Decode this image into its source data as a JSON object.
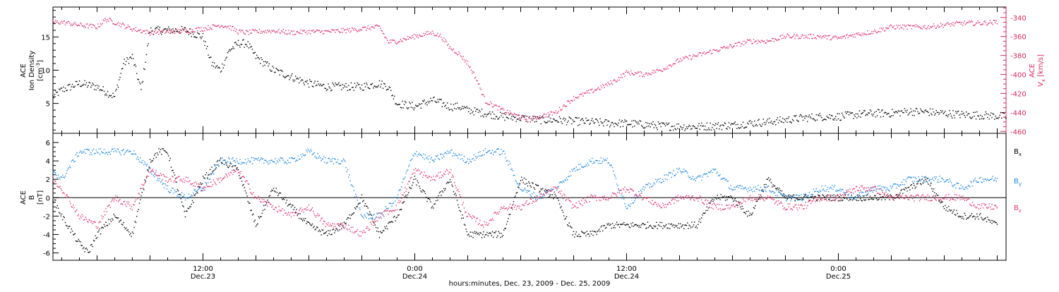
{
  "x_axis": {
    "title": "hours:minutes, Dec. 23, 2009 - Dec. 25, 2009",
    "ticks": [
      {
        "hour": 12,
        "time": "12:00",
        "date": "Dec.23"
      },
      {
        "hour": 24,
        "time": "0:00",
        "date": "Dec.24"
      },
      {
        "hour": 36,
        "time": "12:00",
        "date": "Dec.24"
      },
      {
        "hour": 48,
        "time": "0:00",
        "date": "Dec.25"
      }
    ],
    "range_hours": [
      3.5,
      57.5
    ]
  },
  "colors": {
    "black": "#000000",
    "red": "#e0336a",
    "blue": "#1e88e0",
    "red_axis": "#d6275b"
  },
  "chart_data": [
    {
      "type": "scatter",
      "ylabel_line1": "ACE",
      "ylabel_line2": "Ion Density",
      "ylabel_unit": "[cm",
      "ylabel_unit_exp": "-3",
      "ylabel_unit_end": "]",
      "ylim": [
        0.5,
        19.5
      ],
      "yticks": [
        5,
        10,
        15
      ],
      "ytick_labels": [
        "5",
        "10",
        "15"
      ],
      "y2label_line1": "ACE",
      "y2label_line2_base": "V",
      "y2label_line2_sub": "x",
      "y2label_unit": "[km/s]",
      "y2lim": [
        -462,
        -329
      ],
      "y2ticks": [
        -340,
        -360,
        -380,
        -400,
        -420,
        -440,
        -460
      ],
      "y2tick_labels": [
        "-340",
        "-360",
        "-380",
        "-400",
        "-420",
        "-440",
        "-460"
      ],
      "series": [
        {
          "axis": "left",
          "color": "black",
          "x": [
            3.5,
            4,
            5,
            6,
            7,
            7.5,
            8,
            8.5,
            9,
            9.5,
            10,
            11,
            12,
            12.5,
            13,
            13.5,
            14,
            14.5,
            15,
            15.5,
            16,
            17,
            18,
            19,
            20,
            21,
            22,
            22.5,
            23,
            24,
            25,
            25.5,
            26,
            26.5,
            27,
            28,
            29,
            30,
            31,
            32,
            33,
            34,
            35,
            36,
            37,
            38,
            39,
            40,
            41,
            42,
            43,
            44,
            45,
            46,
            47,
            48,
            49,
            50,
            51,
            52,
            53,
            54,
            55,
            56,
            57,
            57.5
          ],
          "y": [
            6,
            7,
            8,
            7.5,
            6,
            11,
            12,
            7,
            16,
            16,
            16,
            16,
            15,
            11,
            10,
            13,
            14,
            14,
            12,
            11,
            10,
            9,
            8,
            7.5,
            7.5,
            7.5,
            8,
            7.5,
            5,
            4.5,
            5.5,
            5,
            4.5,
            4.5,
            4,
            3.5,
            3,
            2.8,
            2.5,
            2.5,
            2.3,
            2.2,
            2,
            2,
            1.8,
            1.6,
            1.5,
            1.5,
            1.6,
            1.7,
            2,
            2.2,
            2.5,
            2.8,
            3,
            3,
            3.3,
            3.5,
            3.5,
            3.8,
            3.7,
            3.5,
            3.3,
            3.2,
            3.1,
            3
          ]
        },
        {
          "axis": "right",
          "color": "red",
          "x": [
            3.5,
            4,
            5,
            6,
            6.5,
            7,
            8,
            9,
            10,
            11,
            12,
            13,
            13.5,
            14,
            14.5,
            15,
            16,
            17,
            18,
            19,
            20,
            21,
            22,
            22.5,
            23,
            24,
            24.5,
            25,
            25.5,
            26,
            26.5,
            27,
            27.5,
            28,
            29,
            30,
            30.5,
            31,
            32,
            33,
            34,
            35,
            35.5,
            36,
            37,
            38,
            39,
            40,
            41,
            42,
            43,
            44,
            45,
            46,
            47,
            48,
            49,
            50,
            51,
            52,
            53,
            54,
            55,
            56,
            57
          ],
          "y": [
            -345,
            -345,
            -348,
            -350,
            -342,
            -345,
            -352,
            -356,
            -355,
            -354,
            -352,
            -348,
            -350,
            -355,
            -356,
            -355,
            -354,
            -356,
            -355,
            -355,
            -354,
            -352,
            -350,
            -366,
            -365,
            -360,
            -358,
            -356,
            -360,
            -372,
            -378,
            -388,
            -405,
            -428,
            -438,
            -445,
            -448,
            -445,
            -440,
            -425,
            -418,
            -410,
            -405,
            -398,
            -400,
            -395,
            -385,
            -380,
            -375,
            -370,
            -365,
            -365,
            -360,
            -360,
            -360,
            -362,
            -358,
            -355,
            -350,
            -350,
            -350,
            -348,
            -346,
            -346,
            -345
          ]
        }
      ]
    },
    {
      "type": "scatter",
      "ylabel_line1": "ACE",
      "ylabel_line2": "B",
      "ylabel_unit": "[nT]",
      "ylim": [
        -6.8,
        7
      ],
      "yticks": [
        -6,
        -4,
        -2,
        0,
        2,
        4,
        6
      ],
      "ytick_labels": [
        "-6",
        "-4",
        "-2",
        "0",
        "2",
        "4",
        "6"
      ],
      "zero_line": true,
      "legend_placement": "right",
      "series": [
        {
          "name_base": "B",
          "name_sub": "x",
          "color": "black",
          "x": [
            3.5,
            4,
            5,
            5.5,
            6,
            7,
            8,
            9,
            9.5,
            10,
            11,
            12,
            13,
            14,
            15,
            16,
            17,
            18,
            19,
            20,
            21,
            22,
            23,
            24,
            25,
            26,
            27,
            28,
            29,
            30,
            31,
            32,
            33,
            34,
            35,
            36,
            37,
            38,
            39,
            40,
            41,
            42,
            43,
            44,
            45,
            46,
            47,
            48,
            49,
            50,
            51,
            52,
            53,
            54,
            55,
            56,
            57
          ],
          "y": [
            0,
            -2,
            -5,
            -6,
            -4,
            -2,
            -4,
            4,
            5,
            5,
            -2,
            2,
            4,
            3,
            -3,
            1,
            -1,
            -3,
            -4,
            -3,
            0,
            -4,
            -2,
            2,
            -1,
            2,
            -4,
            -4,
            -4,
            2,
            1,
            0,
            -4,
            -4,
            -3,
            -3,
            -3,
            -3,
            -3,
            -3,
            0,
            0,
            -2,
            2,
            0,
            0,
            0,
            0,
            0,
            0,
            0,
            1,
            2,
            -1,
            -2,
            -2,
            -3
          ]
        },
        {
          "name_base": "B",
          "name_sub": "y",
          "color": "blue",
          "x": [
            3.5,
            4,
            5,
            6,
            7,
            8,
            9,
            10,
            11,
            12,
            13,
            14,
            15,
            16,
            17,
            18,
            19,
            20,
            21,
            22,
            23,
            24,
            25,
            26,
            27,
            28,
            29,
            30,
            31,
            32,
            33,
            34,
            35,
            36,
            37,
            38,
            39,
            40,
            41,
            42,
            43,
            44,
            45,
            46,
            47,
            48,
            49,
            50,
            51,
            52,
            53,
            54,
            55,
            56,
            57
          ],
          "y": [
            3,
            2,
            5,
            5,
            5,
            5,
            3,
            1,
            0,
            1,
            4,
            4,
            4,
            4,
            4,
            5,
            4,
            4,
            -2,
            -2,
            0,
            5,
            4,
            5,
            4,
            5,
            5,
            1,
            0,
            1,
            3,
            4,
            4,
            -1,
            1,
            2,
            3,
            2,
            3,
            1,
            1,
            1,
            0,
            0,
            1,
            1,
            0,
            1,
            1,
            2,
            2,
            2,
            1,
            2,
            2
          ]
        },
        {
          "name_base": "B",
          "name_sub": "z",
          "color": "red",
          "x": [
            3.5,
            4,
            5,
            6,
            7,
            8,
            9,
            10,
            11,
            12,
            13,
            14,
            15,
            16,
            17,
            18,
            19,
            20,
            21,
            22,
            23,
            24,
            25,
            26,
            27,
            28,
            29,
            30,
            31,
            32,
            33,
            34,
            35,
            36,
            37,
            38,
            39,
            40,
            41,
            42,
            43,
            44,
            45,
            46,
            47,
            48,
            49,
            50,
            51,
            52,
            53,
            54,
            55,
            56,
            57
          ],
          "y": [
            2,
            1,
            -2,
            -3,
            0,
            -1,
            3,
            2,
            2,
            1,
            2,
            3,
            0,
            -1,
            -2,
            -1,
            -3,
            -3,
            -4,
            -2,
            -1,
            3,
            2,
            3,
            -2,
            -3,
            -1,
            -1,
            0,
            1,
            -1,
            0,
            0,
            1,
            0,
            -1,
            0,
            0,
            -1,
            -1,
            0,
            0,
            -1,
            -1,
            0,
            0,
            1,
            1,
            0,
            0,
            0,
            0,
            0,
            -1,
            -1
          ]
        }
      ]
    }
  ]
}
